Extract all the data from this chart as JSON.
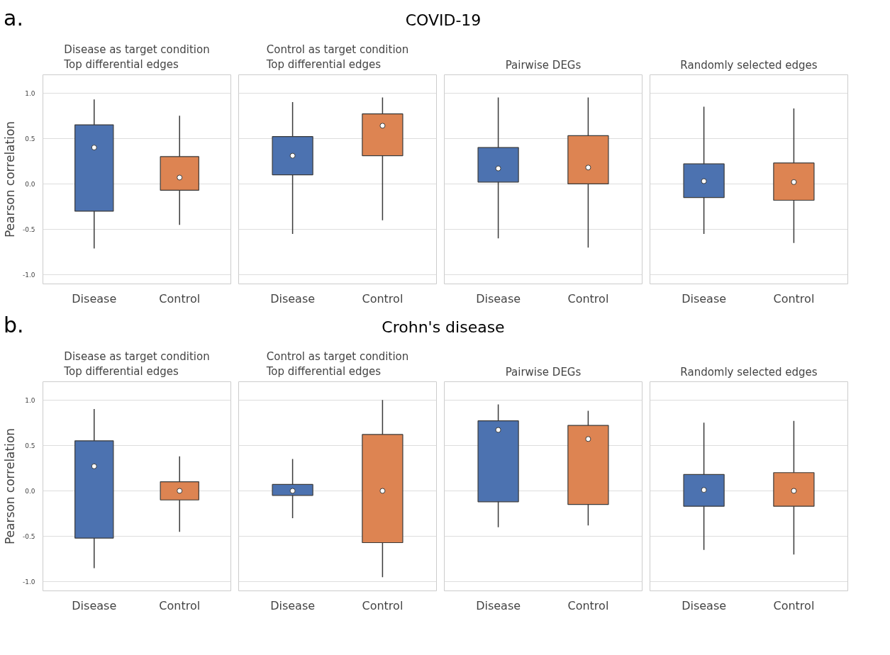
{
  "chart_data": [
    {
      "type": "box",
      "title": "Disease as target condition\nTop differential edges",
      "ylabel": "Pearson correlation",
      "annotations": [
        "a.",
        "COVID-19"
      ],
      "categories": [
        "Disease",
        "Control"
      ],
      "colors": [
        "#4c72b0",
        "#dd8452"
      ],
      "boxes": [
        {
          "low": -0.71,
          "q1": -0.3,
          "median": 0.4,
          "q3": 0.65,
          "high": 0.93
        },
        {
          "low": -0.45,
          "q1": -0.07,
          "median": 0.07,
          "q3": 0.3,
          "high": 0.75
        }
      ],
      "ylim": [
        -1.1,
        1.2
      ],
      "yticks": [
        {
          "value": -1,
          "label": "-1.0"
        },
        {
          "value": -0.5,
          "label": "-0.5"
        },
        {
          "value": 0,
          "label": "0.0"
        },
        {
          "value": 0.5,
          "label": "0.5"
        },
        {
          "value": 1,
          "label": "1.0"
        }
      ],
      "grid": "y"
    },
    {
      "type": "box",
      "title": "Control as target condition\nTop differential edges",
      "categories": [
        "Disease",
        "Control"
      ],
      "colors": [
        "#4c72b0",
        "#dd8452"
      ],
      "boxes": [
        {
          "low": -0.55,
          "q1": 0.1,
          "median": 0.31,
          "q3": 0.52,
          "high": 0.9
        },
        {
          "low": -0.4,
          "q1": 0.31,
          "median": 0.64,
          "q3": 0.77,
          "high": 0.95
        }
      ],
      "ylim": [
        -1.1,
        1.2
      ],
      "grid": "y",
      "tick_labels": "x"
    },
    {
      "type": "box",
      "title": "Pairwise DEGs",
      "categories": [
        "Disease",
        "Control"
      ],
      "colors": [
        "#4c72b0",
        "#dd8452"
      ],
      "boxes": [
        {
          "low": -0.6,
          "q1": 0.02,
          "median": 0.17,
          "q3": 0.4,
          "high": 0.95
        },
        {
          "low": -0.7,
          "q1": 0.0,
          "median": 0.18,
          "q3": 0.53,
          "high": 0.95
        }
      ],
      "ylim": [
        -1.1,
        1.2
      ],
      "grid": "y",
      "tick_labels": "x"
    },
    {
      "type": "box",
      "title": "Randomly selected edges",
      "categories": [
        "Disease",
        "Control"
      ],
      "colors": [
        "#4c72b0",
        "#dd8452"
      ],
      "boxes": [
        {
          "low": -0.55,
          "q1": -0.15,
          "median": 0.03,
          "q3": 0.22,
          "high": 0.85
        },
        {
          "low": -0.65,
          "q1": -0.18,
          "median": 0.02,
          "q3": 0.23,
          "high": 0.83
        }
      ],
      "ylim": [
        -1.1,
        1.2
      ],
      "grid": "y",
      "tick_labels": "x"
    },
    {
      "type": "box",
      "title": "Disease as target condition\nTop differential edges",
      "ylabel": "Pearson correlation",
      "annotations": [
        "b.",
        "Crohn's disease"
      ],
      "categories": [
        "Disease",
        "Control"
      ],
      "colors": [
        "#4c72b0",
        "#dd8452"
      ],
      "boxes": [
        {
          "low": -0.85,
          "q1": -0.52,
          "median": 0.27,
          "q3": 0.55,
          "high": 0.9
        },
        {
          "low": -0.45,
          "q1": -0.1,
          "median": 0.0,
          "q3": 0.1,
          "high": 0.38
        }
      ],
      "ylim": [
        -1.1,
        1.2
      ],
      "yticks": [
        {
          "value": -1,
          "label": "-1.0"
        },
        {
          "value": -0.5,
          "label": "-0.5"
        },
        {
          "value": 0,
          "label": "0.0"
        },
        {
          "value": 0.5,
          "label": "0.5"
        },
        {
          "value": 1,
          "label": "1.0"
        }
      ],
      "grid": "y"
    },
    {
      "type": "box",
      "title": "Control as target condition\nTop differential edges",
      "categories": [
        "Disease",
        "Control"
      ],
      "colors": [
        "#4c72b0",
        "#dd8452"
      ],
      "boxes": [
        {
          "low": -0.3,
          "q1": -0.05,
          "median": 0.0,
          "q3": 0.07,
          "high": 0.35
        },
        {
          "low": -0.95,
          "q1": -0.57,
          "median": 0.0,
          "q3": 0.62,
          "high": 1.0
        }
      ],
      "ylim": [
        -1.1,
        1.2
      ],
      "grid": "y",
      "tick_labels": "x"
    },
    {
      "type": "box",
      "title": "Pairwise DEGs",
      "categories": [
        "Disease",
        "Control"
      ],
      "colors": [
        "#4c72b0",
        "#dd8452"
      ],
      "boxes": [
        {
          "low": -0.4,
          "q1": -0.12,
          "median": 0.67,
          "q3": 0.77,
          "high": 0.95
        },
        {
          "low": -0.38,
          "q1": -0.15,
          "median": 0.57,
          "q3": 0.72,
          "high": 0.88
        }
      ],
      "ylim": [
        -1.1,
        1.2
      ],
      "grid": "y",
      "tick_labels": "x"
    },
    {
      "type": "box",
      "title": "Randomly selected edges",
      "categories": [
        "Disease",
        "Control"
      ],
      "colors": [
        "#4c72b0",
        "#dd8452"
      ],
      "boxes": [
        {
          "low": -0.65,
          "q1": -0.17,
          "median": 0.01,
          "q3": 0.18,
          "high": 0.75
        },
        {
          "low": -0.7,
          "q1": -0.17,
          "median": 0.0,
          "q3": 0.2,
          "high": 0.77
        }
      ],
      "ylim": [
        -1.1,
        1.2
      ],
      "grid": "y",
      "tick_labels": "x"
    }
  ]
}
